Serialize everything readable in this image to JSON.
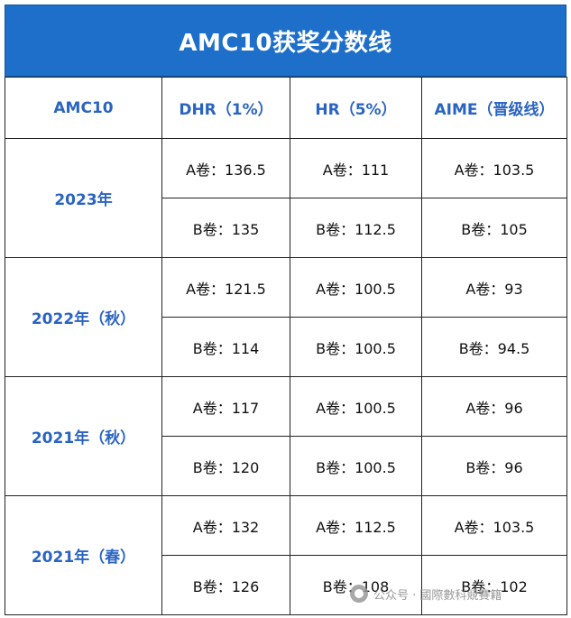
{
  "title": "AMC10获奖分数线",
  "header": {
    "col0": "AMC10",
    "col1": "DHR（1%）",
    "col2": "HR（5%）",
    "col3": "AIME（晋级线）"
  },
  "groups": [
    {
      "year": "2023年",
      "rows": [
        {
          "dhr": "A卷：136.5",
          "hr": "A卷：111",
          "aime": "A卷：103.5"
        },
        {
          "dhr": "B卷：135",
          "hr": "B卷：112.5",
          "aime": "B卷：105"
        }
      ]
    },
    {
      "year": "2022年（秋）",
      "rows": [
        {
          "dhr": "A卷：121.5",
          "hr": "A卷：100.5",
          "aime": "A卷：93"
        },
        {
          "dhr": "B卷：114",
          "hr": "B卷：100.5",
          "aime": "B卷：94.5"
        }
      ]
    },
    {
      "year": "2021年（秋）",
      "rows": [
        {
          "dhr": "A卷：117",
          "hr": "A卷：100.5",
          "aime": "A卷：96"
        },
        {
          "dhr": "B卷：120",
          "hr": "B卷：100.5",
          "aime": "B卷：96"
        }
      ]
    },
    {
      "year": "2021年（春）",
      "rows": [
        {
          "dhr": "A卷：132",
          "hr": "A卷：112.5",
          "aime": "A卷：103.5"
        },
        {
          "dhr": "B卷：126",
          "hr": "B卷：108",
          "aime": "B卷：102"
        }
      ]
    }
  ],
  "watermark": {
    "text": "公众号 · 國際數科競賽籍",
    "icon": "wechat-icon"
  },
  "colors": {
    "title_bg": "#1e6fc9",
    "header_text": "#2a64c2"
  }
}
